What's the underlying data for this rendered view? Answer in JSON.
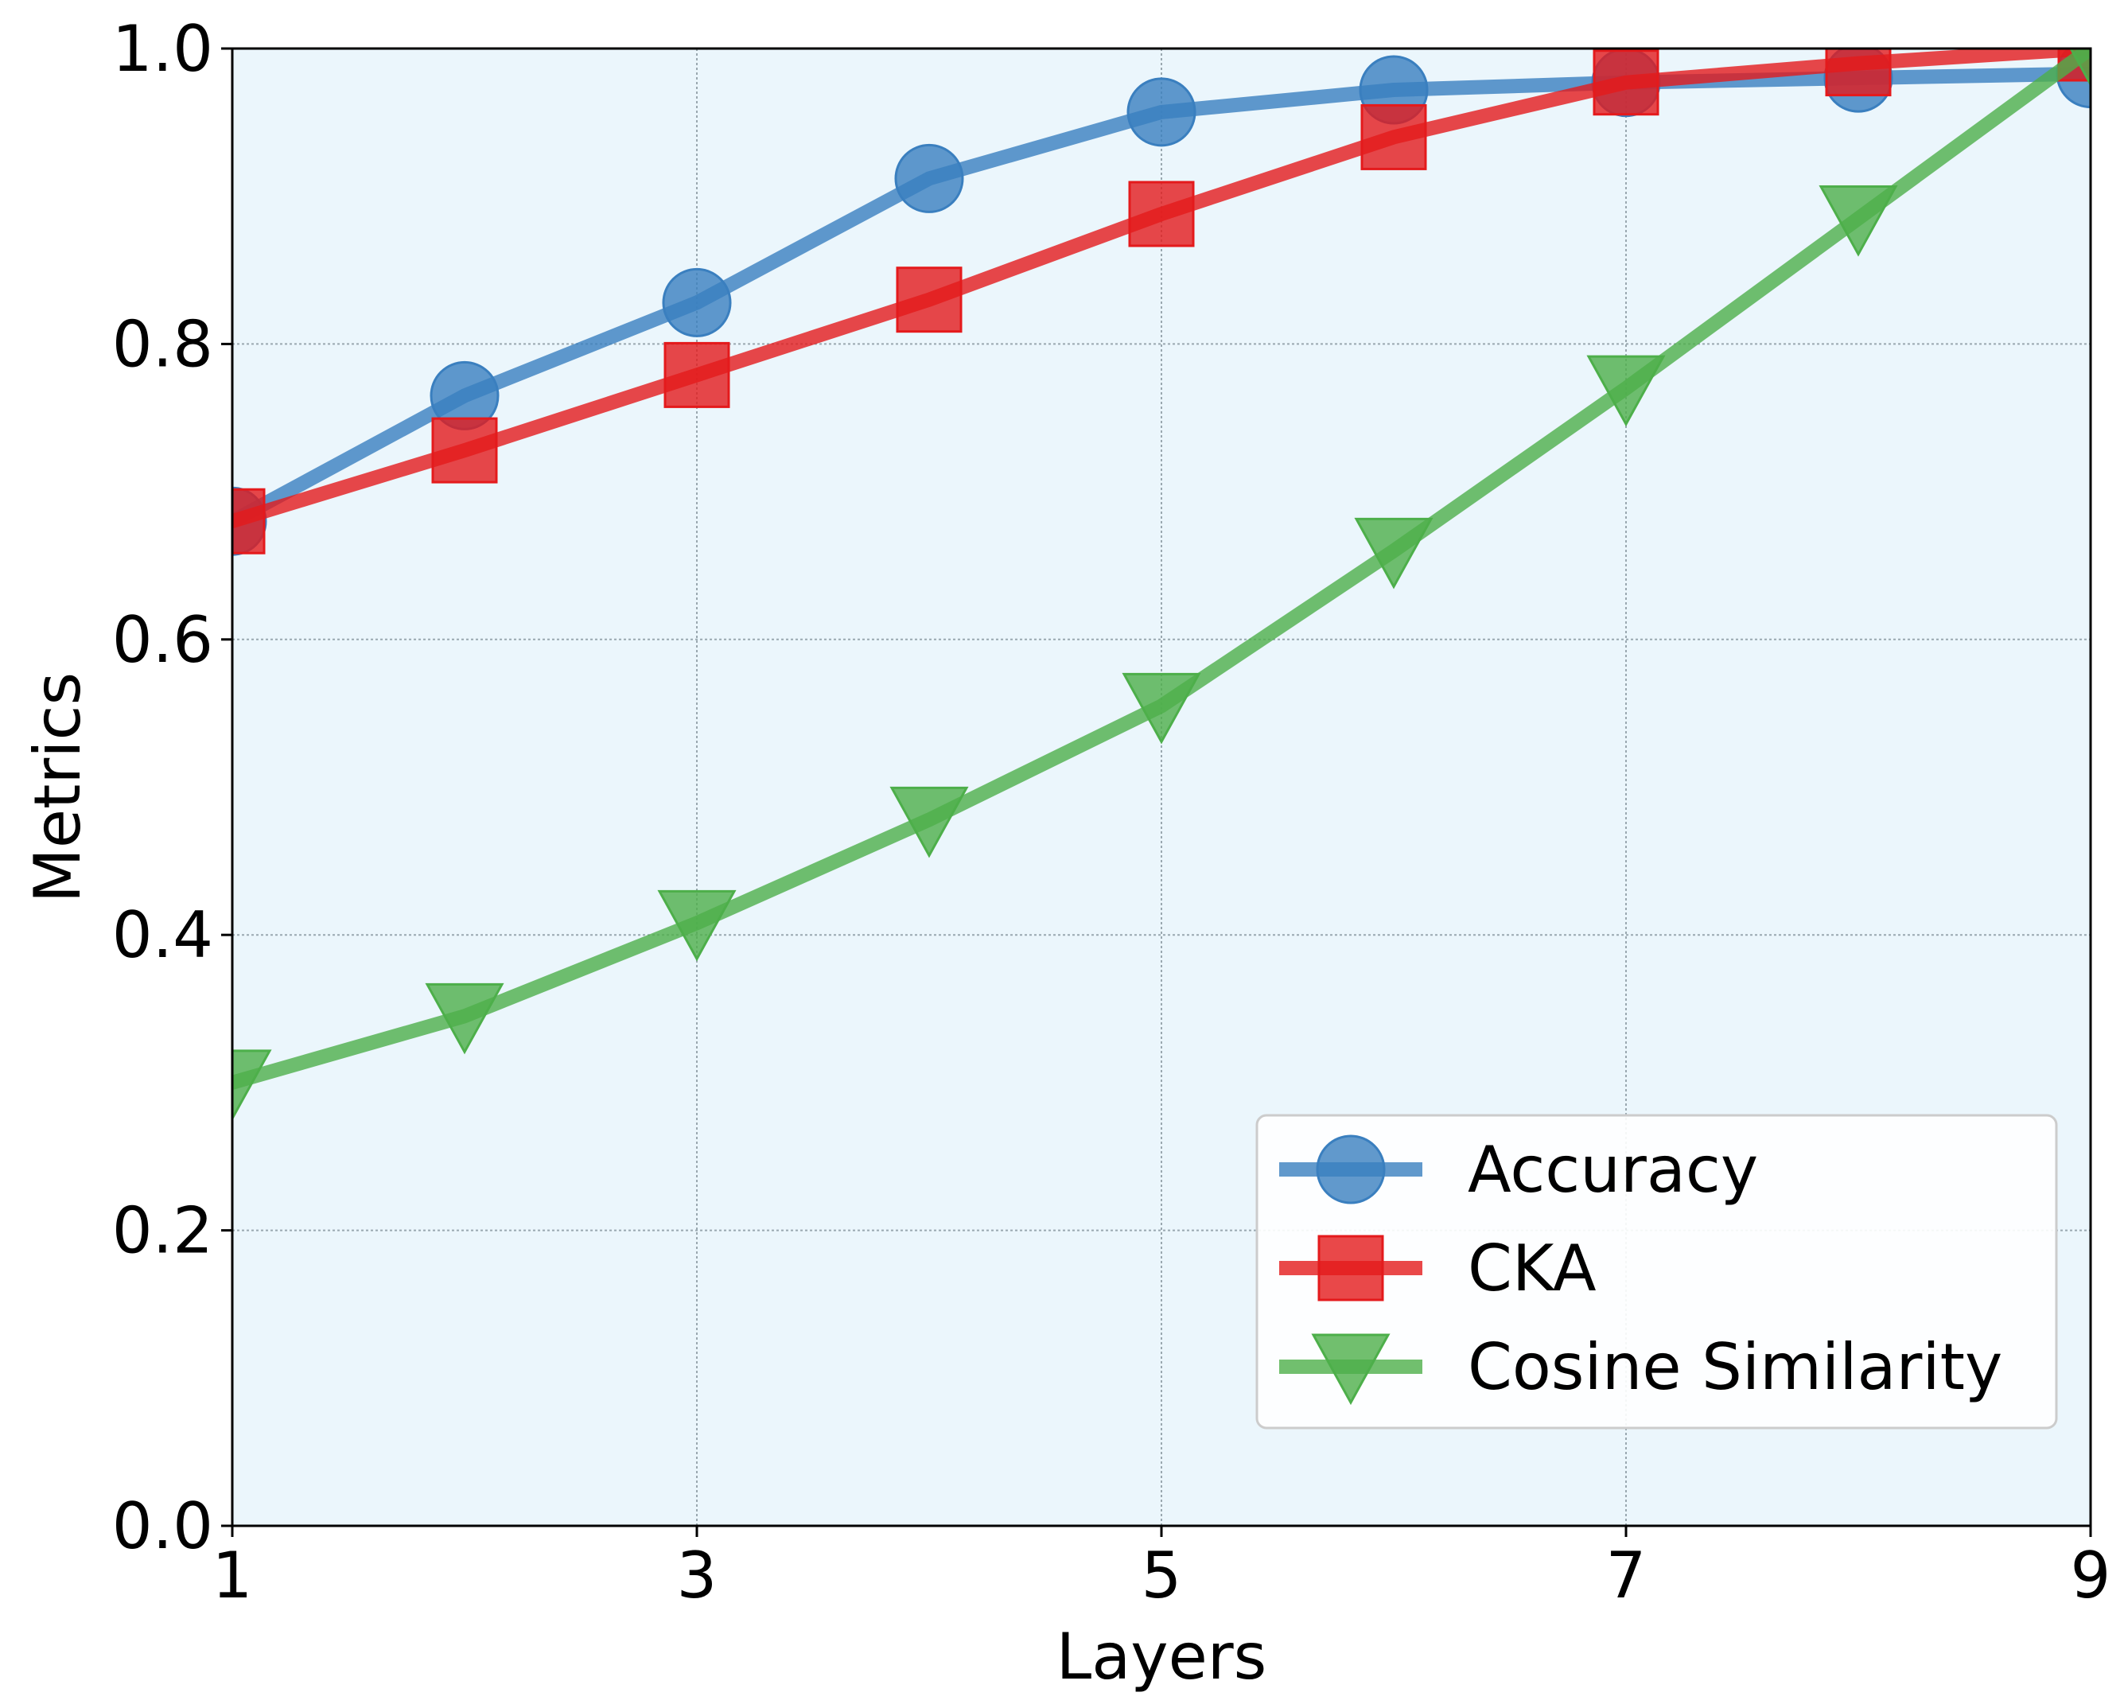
{
  "chart_data": {
    "type": "line",
    "title": "",
    "xlabel": "Layers",
    "ylabel": "Metrics",
    "x": [
      1,
      2,
      3,
      4,
      5,
      6,
      7,
      8,
      9
    ],
    "xlim": [
      1,
      9
    ],
    "ylim": [
      0.0,
      1.0
    ],
    "xticks": [
      "1",
      "3",
      "5",
      "7",
      "9"
    ],
    "yticks": [
      "0.0",
      "0.2",
      "0.4",
      "0.6",
      "0.8",
      "1.0"
    ],
    "grid": true,
    "plot_background": "#ebf6fc",
    "legend_position": "lower right",
    "series": [
      {
        "name": "Accuracy",
        "color": "#3a7fbf",
        "marker": "circle",
        "values": [
          0.68,
          0.765,
          0.828,
          0.912,
          0.957,
          0.972,
          0.977,
          0.98,
          0.983
        ]
      },
      {
        "name": "CKA",
        "color": "#e41a1c",
        "marker": "square",
        "values": [
          0.68,
          0.728,
          0.779,
          0.83,
          0.888,
          0.94,
          0.977,
          0.99,
          1.0
        ]
      },
      {
        "name": "Cosine Similarity",
        "color": "#4daf4a",
        "marker": "triangle-down",
        "values": [
          0.3,
          0.345,
          0.408,
          0.478,
          0.555,
          0.66,
          0.77,
          0.885,
          1.0
        ]
      }
    ]
  }
}
